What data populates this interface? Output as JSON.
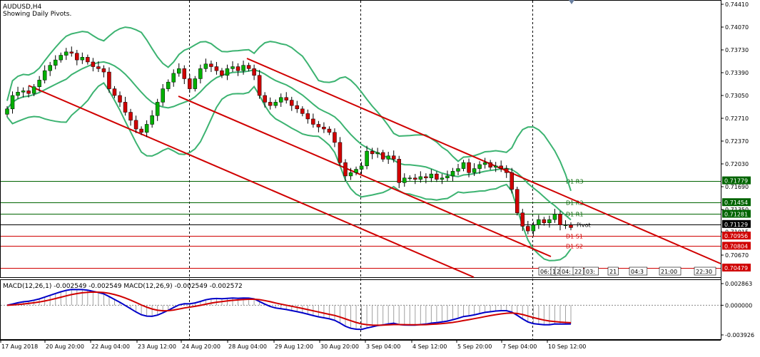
{
  "header": {
    "symbol": "AUDUSD,H4",
    "subtitle": "Showing Daily Pivots."
  },
  "colors": {
    "bull_candle": "#00b000",
    "bear_candle": "#d00000",
    "bollinger": "#3cb371",
    "channel": "#d00000",
    "pivot_green": "#006400",
    "pivot_red": "#d00000",
    "macd_line": "#0000c8",
    "signal_line": "#d00000",
    "histogram": "#a0a0a0"
  },
  "price_axis": {
    "ticks": [
      "0.74410",
      "0.74070",
      "0.73730",
      "0.73390",
      "0.73050",
      "0.72710",
      "0.72370",
      "0.72030",
      "0.71690",
      "0.71350",
      "0.71015",
      "0.70670"
    ],
    "tick_values": [
      0.7441,
      0.7407,
      0.7373,
      0.7339,
      0.7305,
      0.7271,
      0.7237,
      0.7203,
      0.7169,
      0.7135,
      0.71015,
      0.7067
    ],
    "range": [
      0.70425,
      0.74476
    ]
  },
  "pivot_levels": [
    {
      "name": "D1 R3",
      "value": 0.71779,
      "label": "0.71779",
      "color": "#006400"
    },
    {
      "name": "D1 R2",
      "value": 0.71454,
      "label": "0.71454",
      "color": "#006400"
    },
    {
      "name": "D1 R1",
      "value": 0.71281,
      "label": "0.71281",
      "color": "#006400"
    },
    {
      "name": "Pivot",
      "value": 0.71129,
      "label": "0.71129",
      "color": "#000000"
    },
    {
      "name": "D1 S1",
      "value": 0.70956,
      "label": "0.70956",
      "color": "#d00000"
    },
    {
      "name": "D1 S2",
      "value": 0.70804,
      "label": "0.70804",
      "color": "#d00000"
    },
    {
      "name": "",
      "value": 0.70479,
      "label": "0.70479",
      "color": "#d00000"
    }
  ],
  "chart_data": {
    "type": "candlestick",
    "title": "AUDUSD,H4",
    "x_labels": [
      "17 Aug 2018",
      "20 Aug 20:00",
      "22 Aug 04:00",
      "23 Aug 12:00",
      "24 Aug 20:00",
      "28 Aug 04:00",
      "29 Aug 12:00",
      "30 Aug 20:00",
      "3 Sep 04:00",
      "4 Sep 12:00",
      "5 Sep 20:00",
      "7 Sep 04:00",
      "10 Sep 12:00"
    ],
    "closes": [
      0.7285,
      0.7305,
      0.731,
      0.7312,
      0.7308,
      0.7318,
      0.7328,
      0.7342,
      0.735,
      0.7358,
      0.7365,
      0.737,
      0.7368,
      0.7358,
      0.7362,
      0.7355,
      0.7348,
      0.7345,
      0.734,
      0.7315,
      0.7305,
      0.7295,
      0.728,
      0.7268,
      0.7255,
      0.725,
      0.7262,
      0.7275,
      0.7295,
      0.7315,
      0.7325,
      0.7338,
      0.7345,
      0.733,
      0.7315,
      0.733,
      0.7345,
      0.7352,
      0.7348,
      0.7342,
      0.7335,
      0.7345,
      0.7348,
      0.7342,
      0.735,
      0.7345,
      0.7335,
      0.7305,
      0.7295,
      0.729,
      0.7295,
      0.7302,
      0.7298,
      0.729,
      0.7285,
      0.7278,
      0.727,
      0.7262,
      0.7258,
      0.7255,
      0.725,
      0.7235,
      0.7205,
      0.7185,
      0.719,
      0.7195,
      0.72,
      0.7222,
      0.7218,
      0.722,
      0.721,
      0.7215,
      0.721,
      0.7175,
      0.7182,
      0.7182,
      0.718,
      0.7184,
      0.7182,
      0.7188,
      0.718,
      0.7182,
      0.7185,
      0.7192,
      0.7196,
      0.7205,
      0.719,
      0.7196,
      0.7202,
      0.7205,
      0.7198,
      0.72,
      0.7196,
      0.719,
      0.7165,
      0.713,
      0.711,
      0.7103,
      0.7112,
      0.712,
      0.7115,
      0.712,
      0.7128,
      0.7112,
      0.7112,
      0.7108
    ],
    "macd": {
      "label": "MACD(12,26,1) -0.002549 -0.002549 MACD(12,26,9) -0.002549 -0.002572",
      "axis_labels": [
        "0.002863",
        "0.000000",
        "-0.003926"
      ],
      "axis_values": [
        0.002863,
        0.0,
        -0.003926
      ]
    },
    "bollinger_bands": true,
    "channel_lines": 3,
    "grid": "vertical-dashed"
  },
  "time_scroll": {
    "labels": [
      "06:1",
      "1",
      "22:",
      "04:",
      "22",
      "03:",
      "21",
      "04:3",
      "21:00",
      "22:30"
    ]
  }
}
